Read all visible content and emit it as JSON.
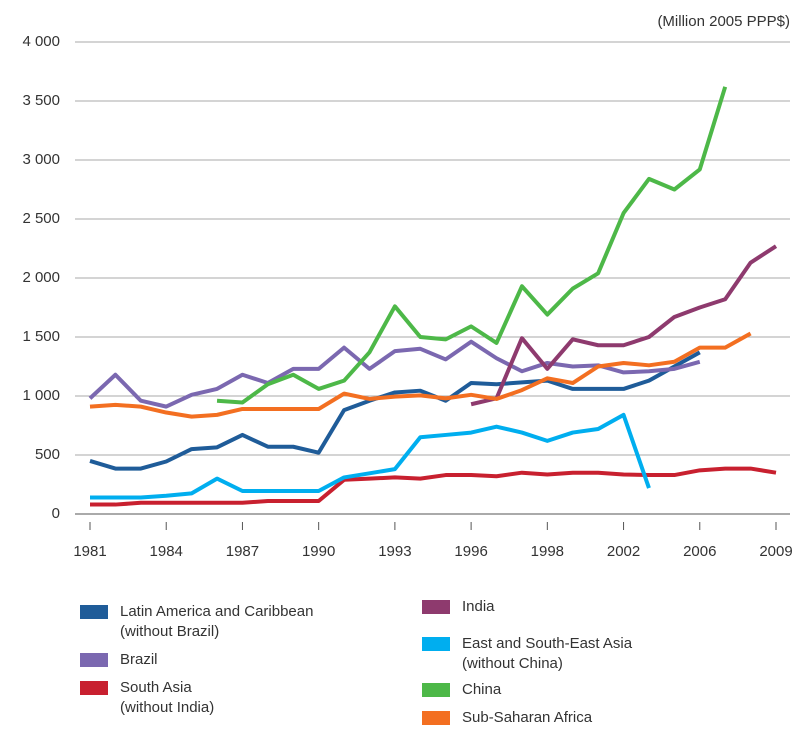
{
  "chart_data": {
    "type": "line",
    "unit_label": "(Million 2005 PPP$)",
    "categories": [
      "1981",
      null,
      null,
      "1984",
      null,
      null,
      "1987",
      null,
      null,
      "1990",
      null,
      null,
      "1993",
      null,
      null,
      "1996",
      null,
      null,
      "1998",
      null,
      null,
      "2002",
      null,
      null,
      "2006",
      null,
      null,
      "2009"
    ],
    "ylim": [
      0,
      4000
    ],
    "yticks": [
      0,
      500,
      {
        "value": 1000,
        "label": "1 000"
      },
      {
        "value": 1500,
        "label": "1 500"
      },
      {
        "value": 2000,
        "label": "2 000"
      },
      {
        "value": 2500,
        "label": "2 500"
      },
      {
        "value": 3000,
        "label": "3 000"
      },
      {
        "value": 3500,
        "label": "3 500"
      },
      {
        "value": 4000,
        "label": "4 000"
      }
    ],
    "grid": true,
    "series": [
      {
        "name": "Latin America and Caribbean\n(without Brazil)",
        "color": "#1f5c99",
        "values": [
          450,
          385,
          385,
          445,
          550,
          565,
          670,
          570,
          570,
          520,
          880,
          960,
          1030,
          1045,
          960,
          1110,
          1100,
          1115,
          1130,
          1060,
          1060,
          1060,
          1130,
          1250,
          1370,
          null,
          null,
          null
        ]
      },
      {
        "name": "Brazil",
        "color": "#7b68b0",
        "values": [
          980,
          1180,
          960,
          910,
          1010,
          1060,
          1180,
          1110,
          1230,
          1230,
          1410,
          1230,
          1380,
          1400,
          1310,
          1460,
          1320,
          1210,
          1280,
          1250,
          1260,
          1200,
          1210,
          1230,
          1290,
          null,
          null,
          null
        ]
      },
      {
        "name": "South Asia\n(without India)",
        "color": "#c8202f",
        "values": [
          80,
          80,
          95,
          95,
          95,
          95,
          95,
          110,
          110,
          110,
          290,
          300,
          310,
          300,
          330,
          330,
          320,
          350,
          335,
          350,
          350,
          335,
          330,
          330,
          370,
          385,
          385,
          350
        ]
      },
      {
        "name": "India",
        "color": "#8e3a6e",
        "values": [
          null,
          null,
          null,
          null,
          null,
          null,
          null,
          null,
          null,
          null,
          null,
          null,
          null,
          null,
          null,
          930,
          980,
          1490,
          1230,
          1480,
          1430,
          1430,
          1500,
          1670,
          1750,
          1820,
          2130,
          2270
        ]
      },
      {
        "name": "East and South-East Asia\n(without China)",
        "color": "#00aeef",
        "values": [
          140,
          140,
          140,
          155,
          175,
          300,
          195,
          195,
          195,
          195,
          310,
          345,
          380,
          650,
          670,
          690,
          740,
          690,
          620,
          690,
          720,
          840,
          220,
          null,
          null,
          null,
          null,
          null
        ]
      },
      {
        "name": "China",
        "color": "#4db848",
        "values": [
          null,
          null,
          null,
          null,
          null,
          960,
          945,
          1100,
          1180,
          1060,
          1130,
          1370,
          1760,
          1500,
          1480,
          1590,
          1450,
          1930,
          1690,
          1910,
          2040,
          2550,
          2840,
          2750,
          2920,
          3620,
          null,
          null
        ]
      },
      {
        "name": "Sub-Saharan Africa",
        "color": "#f36f21",
        "values": [
          910,
          925,
          910,
          860,
          825,
          840,
          890,
          890,
          890,
          890,
          1020,
          975,
          995,
          1005,
          980,
          1010,
          975,
          1050,
          1150,
          1110,
          1250,
          1280,
          1260,
          1290,
          1410,
          1410,
          1530,
          null
        ]
      }
    ]
  }
}
